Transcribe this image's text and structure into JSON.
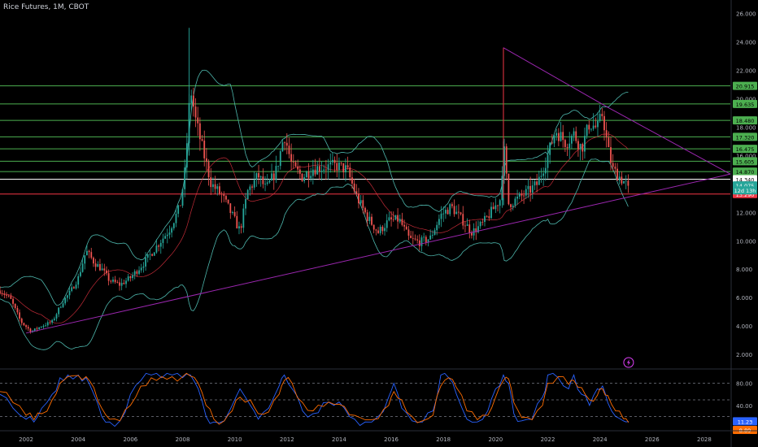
{
  "header": {
    "title": "Rice Futures, 1M, CBOT"
  },
  "chart_data": [
    {
      "type": "candlestick",
      "title": "Rice Futures, 1M, CBOT",
      "x_ticks": [
        "2002",
        "2004",
        "2006",
        "2008",
        "2010",
        "2012",
        "2014",
        "2016",
        "2018",
        "2020",
        "2022",
        "2024",
        "2026",
        "2028"
      ],
      "y_ticks": [
        "2.000",
        "4.000",
        "6.000",
        "8.000",
        "10.000",
        "12.000",
        "14.000",
        "16.000",
        "18.000",
        "20.000",
        "22.000",
        "24.000",
        "26.000"
      ],
      "xlim": [
        2001,
        2029
      ],
      "ylim": [
        1.2,
        26.5
      ],
      "price_path": [
        [
          2001.0,
          6.5
        ],
        [
          2001.4,
          5.9
        ],
        [
          2001.8,
          4.3
        ],
        [
          2002.2,
          3.6
        ],
        [
          2002.6,
          4.0
        ],
        [
          2003.0,
          4.3
        ],
        [
          2003.4,
          5.7
        ],
        [
          2003.7,
          6.4
        ],
        [
          2004.0,
          7.4
        ],
        [
          2004.3,
          9.3
        ],
        [
          2004.6,
          8.5
        ],
        [
          2004.9,
          8.0
        ],
        [
          2005.2,
          7.2
        ],
        [
          2005.6,
          6.9
        ],
        [
          2006.0,
          7.4
        ],
        [
          2006.5,
          8.4
        ],
        [
          2007.0,
          9.6
        ],
        [
          2007.5,
          10.8
        ],
        [
          2007.9,
          12.4
        ],
        [
          2008.1,
          15.0
        ],
        [
          2008.3,
          20.8
        ],
        [
          2008.5,
          18.5
        ],
        [
          2008.8,
          16.2
        ],
        [
          2009.1,
          14.0
        ],
        [
          2009.5,
          13.2
        ],
        [
          2009.9,
          11.8
        ],
        [
          2010.2,
          10.7
        ],
        [
          2010.5,
          13.5
        ],
        [
          2010.9,
          14.6
        ],
        [
          2011.2,
          13.6
        ],
        [
          2011.6,
          15.0
        ],
        [
          2011.9,
          17.5
        ],
        [
          2012.2,
          15.2
        ],
        [
          2012.6,
          14.5
        ],
        [
          2013.0,
          15.1
        ],
        [
          2013.5,
          15.2
        ],
        [
          2013.9,
          15.3
        ],
        [
          2014.3,
          15.0
        ],
        [
          2014.7,
          13.0
        ],
        [
          2015.1,
          11.6
        ],
        [
          2015.5,
          10.6
        ],
        [
          2015.9,
          11.4
        ],
        [
          2016.3,
          11.5
        ],
        [
          2016.7,
          10.1
        ],
        [
          2017.1,
          9.9
        ],
        [
          2017.5,
          10.2
        ],
        [
          2017.9,
          11.8
        ],
        [
          2018.3,
          12.4
        ],
        [
          2018.7,
          11.5
        ],
        [
          2019.1,
          10.6
        ],
        [
          2019.5,
          11.2
        ],
        [
          2019.9,
          12.2
        ],
        [
          2020.2,
          13.0
        ],
        [
          2020.3,
          17.0
        ],
        [
          2020.5,
          12.6
        ],
        [
          2020.8,
          12.9
        ],
        [
          2021.2,
          13.4
        ],
        [
          2021.6,
          14.0
        ],
        [
          2022.0,
          16.0
        ],
        [
          2022.3,
          17.8
        ],
        [
          2022.7,
          16.9
        ],
        [
          2023.0,
          17.5
        ],
        [
          2023.3,
          16.5
        ],
        [
          2023.6,
          18.3
        ],
        [
          2023.9,
          17.9
        ],
        [
          2024.1,
          19.0
        ],
        [
          2024.3,
          16.5
        ],
        [
          2024.5,
          15.0
        ],
        [
          2024.8,
          14.4
        ],
        [
          2025.0,
          14.0
        ],
        [
          2025.1,
          13.5
        ]
      ],
      "candle_colors": {
        "up": "#26a69a",
        "down": "#ef5350"
      },
      "horizontal_levels": [
        {
          "label": "20.915",
          "value": 20.915,
          "color": "#4caf50"
        },
        {
          "label": "19.635",
          "value": 19.635,
          "color": "#4caf50"
        },
        {
          "label": "18.480",
          "value": 18.48,
          "color": "#4caf50"
        },
        {
          "label": "17.320",
          "value": 17.32,
          "color": "#4caf50"
        },
        {
          "label": "16.475",
          "value": 16.475,
          "color": "#4caf50"
        },
        {
          "label": "15.605",
          "value": 15.605,
          "color": "#4caf50"
        },
        {
          "label": "14.870",
          "value": 14.87,
          "color": "#4caf50"
        },
        {
          "label": "14.340",
          "value": 14.34,
          "color": "#ffffff"
        },
        {
          "label": "13.290",
          "value": 13.29,
          "color": "#f23645"
        }
      ],
      "price_tags": [
        {
          "label": "14.075",
          "value": 13.9,
          "color": "#26a69a"
        },
        {
          "label": "12d 13h",
          "value": 13.55,
          "color": "#26a69a"
        }
      ],
      "trendlines": [
        {
          "name": "support",
          "from": [
            2002.0,
            3.5
          ],
          "to": [
            2029.0,
            14.7
          ],
          "color": "#9c27b0"
        },
        {
          "name": "resistance",
          "from": [
            2024.3,
            19.4
          ],
          "to": [
            2029.0,
            14.7
          ],
          "color": "#9c27b0"
        },
        {
          "name": "spike",
          "from": [
            2020.3,
            13.0
          ],
          "to": [
            2020.3,
            23.6
          ],
          "color": "#f23645"
        },
        {
          "name": "spike-diagonal",
          "from": [
            2020.3,
            23.6
          ],
          "to": [
            2024.3,
            19.4
          ],
          "color": "#9c27b0"
        }
      ],
      "bands": {
        "color": "#4db6ac",
        "basis_color": "#f23645"
      }
    },
    {
      "type": "line",
      "title": "",
      "y_ticks": [
        "80.00",
        "40.00"
      ],
      "ylim": [
        0,
        100
      ],
      "levels": [
        80,
        50,
        20
      ],
      "last_value": "11.23",
      "last_value_2": "8.89",
      "series": [
        {
          "color": "#2962ff",
          "values": [
            [
              2001.0,
              60
            ],
            [
              2001.5,
              35
            ],
            [
              2002.0,
              15
            ],
            [
              2002.3,
              10
            ],
            [
              2002.6,
              35
            ],
            [
              2003.0,
              60
            ],
            [
              2003.3,
              90
            ],
            [
              2003.6,
              95
            ],
            [
              2004.0,
              95
            ],
            [
              2004.3,
              90
            ],
            [
              2004.6,
              60
            ],
            [
              2004.9,
              20
            ],
            [
              2005.2,
              10
            ],
            [
              2005.6,
              12
            ],
            [
              2006.0,
              60
            ],
            [
              2006.4,
              85
            ],
            [
              2006.8,
              95
            ],
            [
              2007.2,
              90
            ],
            [
              2007.6,
              95
            ],
            [
              2008.0,
              90
            ],
            [
              2008.3,
              95
            ],
            [
              2008.6,
              70
            ],
            [
              2008.9,
              20
            ],
            [
              2009.2,
              10
            ],
            [
              2009.6,
              12
            ],
            [
              2009.9,
              40
            ],
            [
              2010.2,
              70
            ],
            [
              2010.6,
              40
            ],
            [
              2010.9,
              15
            ],
            [
              2011.3,
              35
            ],
            [
              2011.7,
              75
            ],
            [
              2011.9,
              95
            ],
            [
              2012.2,
              70
            ],
            [
              2012.6,
              30
            ],
            [
              2013.0,
              25
            ],
            [
              2013.4,
              45
            ],
            [
              2013.8,
              40
            ],
            [
              2014.2,
              35
            ],
            [
              2014.6,
              15
            ],
            [
              2015.0,
              10
            ],
            [
              2015.5,
              20
            ],
            [
              2015.9,
              55
            ],
            [
              2016.1,
              80
            ],
            [
              2016.4,
              35
            ],
            [
              2016.8,
              12
            ],
            [
              2017.2,
              10
            ],
            [
              2017.6,
              30
            ],
            [
              2017.9,
              95
            ],
            [
              2018.2,
              90
            ],
            [
              2018.5,
              60
            ],
            [
              2018.9,
              15
            ],
            [
              2019.3,
              10
            ],
            [
              2019.7,
              30
            ],
            [
              2020.0,
              70
            ],
            [
              2020.3,
              95
            ],
            [
              2020.5,
              80
            ],
            [
              2020.7,
              25
            ],
            [
              2021.0,
              12
            ],
            [
              2021.4,
              15
            ],
            [
              2021.8,
              55
            ],
            [
              2022.0,
              95
            ],
            [
              2022.4,
              90
            ],
            [
              2022.8,
              70
            ],
            [
              2023.0,
              95
            ],
            [
              2023.3,
              60
            ],
            [
              2023.6,
              40
            ],
            [
              2023.9,
              70
            ],
            [
              2024.1,
              75
            ],
            [
              2024.3,
              45
            ],
            [
              2024.6,
              20
            ],
            [
              2024.9,
              12
            ],
            [
              2025.1,
              11
            ]
          ]
        },
        {
          "color": "#ff6d00",
          "values": [
            [
              2001.0,
              65
            ],
            [
              2001.5,
              45
            ],
            [
              2002.0,
              22
            ],
            [
              2002.3,
              14
            ],
            [
              2002.6,
              25
            ],
            [
              2003.0,
              50
            ],
            [
              2003.3,
              80
            ],
            [
              2003.6,
              92
            ],
            [
              2004.0,
              94
            ],
            [
              2004.3,
              92
            ],
            [
              2004.6,
              72
            ],
            [
              2004.9,
              35
            ],
            [
              2005.2,
              15
            ],
            [
              2005.6,
              12
            ],
            [
              2006.0,
              40
            ],
            [
              2006.4,
              75
            ],
            [
              2006.8,
              90
            ],
            [
              2007.2,
              92
            ],
            [
              2007.6,
              92
            ],
            [
              2008.0,
              92
            ],
            [
              2008.3,
              93
            ],
            [
              2008.6,
              80
            ],
            [
              2008.9,
              40
            ],
            [
              2009.2,
              15
            ],
            [
              2009.6,
              12
            ],
            [
              2009.9,
              30
            ],
            [
              2010.2,
              55
            ],
            [
              2010.6,
              50
            ],
            [
              2010.9,
              25
            ],
            [
              2011.3,
              28
            ],
            [
              2011.7,
              60
            ],
            [
              2011.9,
              85
            ],
            [
              2012.2,
              80
            ],
            [
              2012.6,
              45
            ],
            [
              2013.0,
              30
            ],
            [
              2013.4,
              38
            ],
            [
              2013.8,
              42
            ],
            [
              2014.2,
              38
            ],
            [
              2014.6,
              22
            ],
            [
              2015.0,
              14
            ],
            [
              2015.5,
              16
            ],
            [
              2015.9,
              40
            ],
            [
              2016.1,
              65
            ],
            [
              2016.4,
              50
            ],
            [
              2016.8,
              20
            ],
            [
              2017.2,
              12
            ],
            [
              2017.6,
              22
            ],
            [
              2017.9,
              75
            ],
            [
              2018.2,
              90
            ],
            [
              2018.5,
              72
            ],
            [
              2018.9,
              30
            ],
            [
              2019.3,
              14
            ],
            [
              2019.7,
              22
            ],
            [
              2020.0,
              55
            ],
            [
              2020.3,
              85
            ],
            [
              2020.5,
              88
            ],
            [
              2020.7,
              45
            ],
            [
              2021.0,
              18
            ],
            [
              2021.4,
              14
            ],
            [
              2021.8,
              40
            ],
            [
              2022.0,
              80
            ],
            [
              2022.4,
              92
            ],
            [
              2022.8,
              78
            ],
            [
              2023.0,
              85
            ],
            [
              2023.3,
              72
            ],
            [
              2023.6,
              50
            ],
            [
              2023.9,
              58
            ],
            [
              2024.1,
              70
            ],
            [
              2024.3,
              58
            ],
            [
              2024.6,
              30
            ],
            [
              2024.9,
              16
            ],
            [
              2025.1,
              9
            ]
          ]
        }
      ]
    }
  ],
  "icons": {
    "alert_marker": "lightning-icon"
  }
}
